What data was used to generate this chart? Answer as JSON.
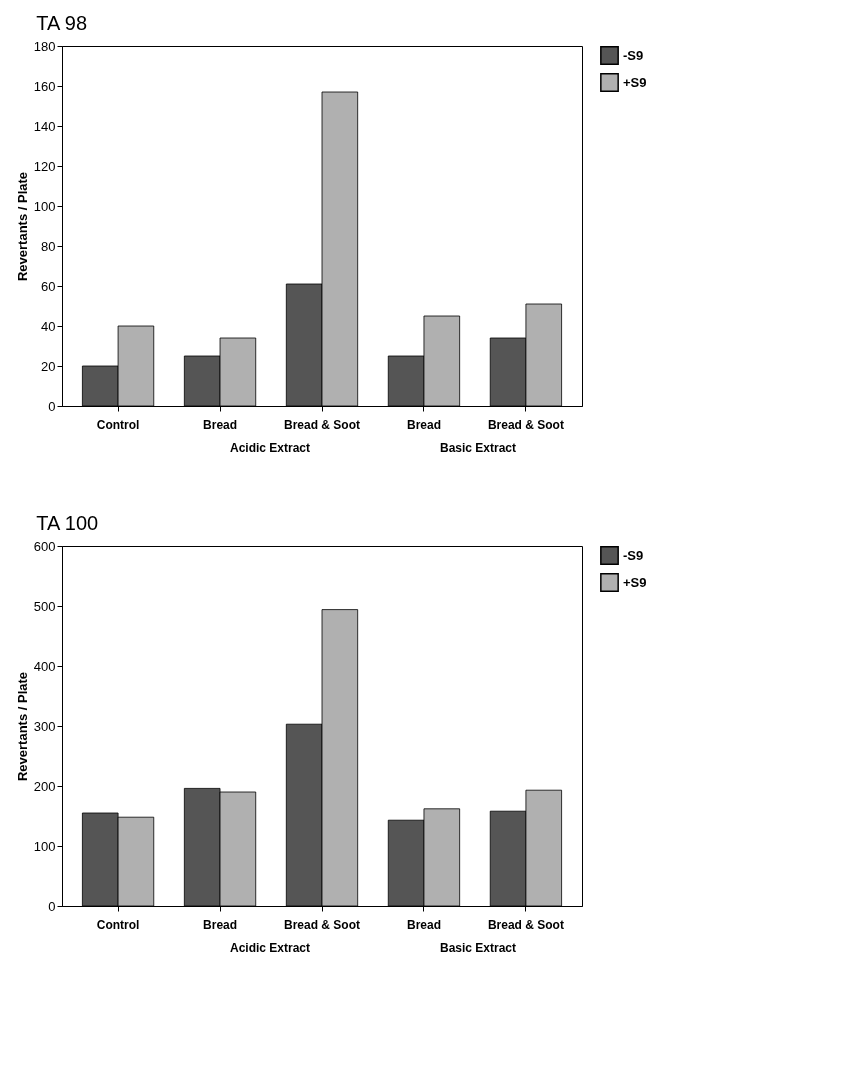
{
  "chart_data": [
    {
      "type": "bar",
      "title": "TA 98",
      "ylabel": "Revertants / Plate",
      "categories": [
        "Control",
        "Bread",
        "Bread & Soot",
        "Bread",
        "Bread & Soot"
      ],
      "series": [
        {
          "name": "-S9",
          "color": "#555555",
          "values": [
            20,
            25,
            61,
            25,
            34
          ]
        },
        {
          "name": "+S9",
          "color": "#b0b0b0",
          "values": [
            40,
            34,
            157,
            45,
            51
          ]
        }
      ],
      "ylim": [
        0,
        180
      ],
      "yticks": [
        0,
        20,
        40,
        60,
        80,
        100,
        120,
        140,
        160,
        180
      ],
      "annotations": [
        "Acidic Extract",
        "Basic Extract"
      ],
      "legend": "right",
      "grid": false
    },
    {
      "type": "bar",
      "title": "TA 100",
      "ylabel": "Revertants / Plate",
      "categories": [
        "Control",
        "Bread",
        "Bread & Soot",
        "Bread",
        "Bread & Soot"
      ],
      "series": [
        {
          "name": "-S9",
          "color": "#555555",
          "values": [
            155,
            196,
            303,
            143,
            158
          ]
        },
        {
          "name": "+S9",
          "color": "#b0b0b0",
          "values": [
            148,
            190,
            494,
            162,
            193
          ]
        }
      ],
      "ylim": [
        0,
        600
      ],
      "yticks": [
        0,
        100,
        200,
        300,
        400,
        500,
        600
      ],
      "annotations": [
        "Acidic Extract",
        "Basic Extract"
      ],
      "legend": "right",
      "grid": false
    }
  ]
}
